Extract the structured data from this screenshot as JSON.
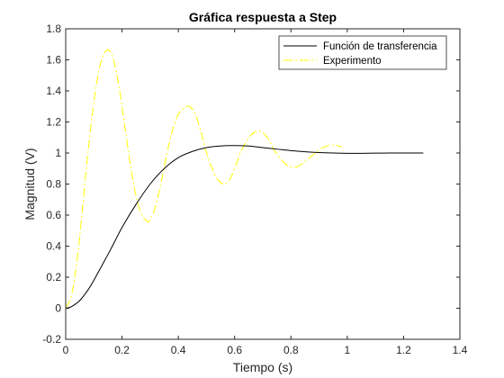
{
  "chart_data": {
    "type": "line",
    "title": "Gráfica respuesta a Step",
    "xlabel": "Tiempo (s)",
    "ylabel": "Magnitud (V)",
    "xlim": [
      0,
      1.4
    ],
    "ylim": [
      -0.2,
      1.8
    ],
    "xticks": [
      0,
      0.2,
      0.4,
      0.6,
      0.8,
      1,
      1.2,
      1.4
    ],
    "yticks": [
      -0.2,
      0,
      0.2,
      0.4,
      0.6,
      0.8,
      1,
      1.2,
      1.4,
      1.6,
      1.8
    ],
    "xtick_labels": [
      "0",
      "0.2",
      "0.4",
      "0.6",
      "0.8",
      "1",
      "1.2",
      "1.4"
    ],
    "ytick_labels": [
      "-0.2",
      "0",
      "0.2",
      "0.4",
      "0.6",
      "0.8",
      "1",
      "1.2",
      "1.4",
      "1.6",
      "1.8"
    ],
    "grid": false,
    "legend_position": "top-right",
    "series": [
      {
        "name": "Función de transferencia",
        "color": "#000000",
        "style": "solid",
        "x": [
          0,
          0.02,
          0.05,
          0.08,
          0.1,
          0.13,
          0.16,
          0.2,
          0.25,
          0.3,
          0.35,
          0.4,
          0.45,
          0.5,
          0.55,
          0.6,
          0.65,
          0.7,
          0.75,
          0.8,
          0.85,
          0.9,
          0.95,
          1.0,
          1.05,
          1.1,
          1.15,
          1.2,
          1.27
        ],
        "y": [
          0,
          0.01,
          0.05,
          0.12,
          0.18,
          0.28,
          0.38,
          0.52,
          0.67,
          0.8,
          0.9,
          0.97,
          1.01,
          1.035,
          1.045,
          1.048,
          1.045,
          1.035,
          1.025,
          1.015,
          1.008,
          1.003,
          1.0,
          0.998,
          0.998,
          0.999,
          1.0,
          1.0,
          1.0
        ]
      },
      {
        "name": "Experimento",
        "color": "#ffff00",
        "style": "dashdot",
        "x": [
          0,
          0.02,
          0.04,
          0.06,
          0.08,
          0.1,
          0.12,
          0.14,
          0.155,
          0.17,
          0.19,
          0.21,
          0.23,
          0.25,
          0.27,
          0.29,
          0.3,
          0.32,
          0.34,
          0.36,
          0.38,
          0.4,
          0.42,
          0.44,
          0.46,
          0.48,
          0.5,
          0.52,
          0.54,
          0.56,
          0.58,
          0.6,
          0.62,
          0.64,
          0.66,
          0.68,
          0.7,
          0.72,
          0.74,
          0.76,
          0.78,
          0.8,
          0.82,
          0.84,
          0.86,
          0.88,
          0.9,
          0.92,
          0.94,
          0.96,
          0.98
        ],
        "y": [
          0,
          0.08,
          0.3,
          0.65,
          1.02,
          1.33,
          1.55,
          1.65,
          1.66,
          1.6,
          1.42,
          1.17,
          0.92,
          0.72,
          0.6,
          0.56,
          0.57,
          0.66,
          0.82,
          1.0,
          1.15,
          1.25,
          1.29,
          1.3,
          1.25,
          1.14,
          1.0,
          0.9,
          0.83,
          0.8,
          0.82,
          0.9,
          1.0,
          1.07,
          1.12,
          1.14,
          1.13,
          1.09,
          1.02,
          0.97,
          0.93,
          0.91,
          0.91,
          0.93,
          0.96,
          0.99,
          1.02,
          1.04,
          1.05,
          1.05,
          1.04
        ]
      }
    ]
  }
}
